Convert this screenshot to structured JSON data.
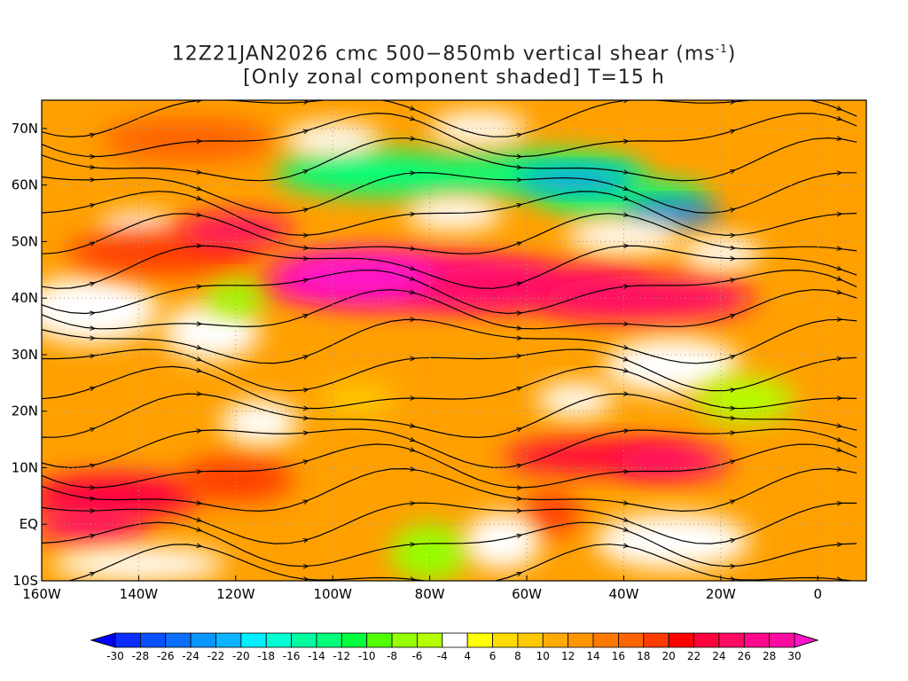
{
  "title": {
    "line1_main": "12Z21JAN2026 cmc 500−850mb vertical shear (ms",
    "line1_sup": "-1",
    "line1_end": ")",
    "line2": "[Only zonal component shaded] T=15 h"
  },
  "map": {
    "lon_range": [
      -160,
      10
    ],
    "lat_range": [
      -10,
      75
    ],
    "lat_ticks": [
      {
        "value": 70,
        "label": "70N"
      },
      {
        "value": 60,
        "label": "60N"
      },
      {
        "value": 50,
        "label": "50N"
      },
      {
        "value": 40,
        "label": "40N"
      },
      {
        "value": 30,
        "label": "30N"
      },
      {
        "value": 20,
        "label": "20N"
      },
      {
        "value": 10,
        "label": "10N"
      },
      {
        "value": 0,
        "label": "EQ"
      },
      {
        "value": -10,
        "label": "10S"
      }
    ],
    "lon_ticks": [
      {
        "value": -160,
        "label": "160W"
      },
      {
        "value": -140,
        "label": "140W"
      },
      {
        "value": -120,
        "label": "120W"
      },
      {
        "value": -100,
        "label": "100W"
      },
      {
        "value": -80,
        "label": "80W"
      },
      {
        "value": -60,
        "label": "60W"
      },
      {
        "value": -40,
        "label": "40W"
      },
      {
        "value": -20,
        "label": "20W"
      },
      {
        "value": 0,
        "label": "0"
      }
    ]
  },
  "colorbar": {
    "labels": [
      "-30",
      "-28",
      "-26",
      "-24",
      "-22",
      "-20",
      "-18",
      "-16",
      "-14",
      "-12",
      "-10",
      "-8",
      "-6",
      "-4",
      "4",
      "6",
      "8",
      "10",
      "12",
      "14",
      "16",
      "18",
      "20",
      "22",
      "24",
      "26",
      "28",
      "30"
    ],
    "low_arrow_color": "#0000ff",
    "high_arrow_color": "#ff14c8",
    "colors": [
      "#0a2dff",
      "#0a50ff",
      "#0a6eff",
      "#0a96ff",
      "#0ab4ff",
      "#00f0ff",
      "#00ffd2",
      "#00ffa0",
      "#00ff78",
      "#00ff3c",
      "#50ff00",
      "#96ff00",
      "#b4ff00",
      "#ffffff",
      "#ffff00",
      "#ffdc00",
      "#ffc800",
      "#ffaa00",
      "#ff9600",
      "#ff7800",
      "#ff6400",
      "#ff3c00",
      "#ff0000",
      "#ff003c",
      "#ff0a64",
      "#ff0a8c",
      "#ff0aa0"
    ]
  }
}
